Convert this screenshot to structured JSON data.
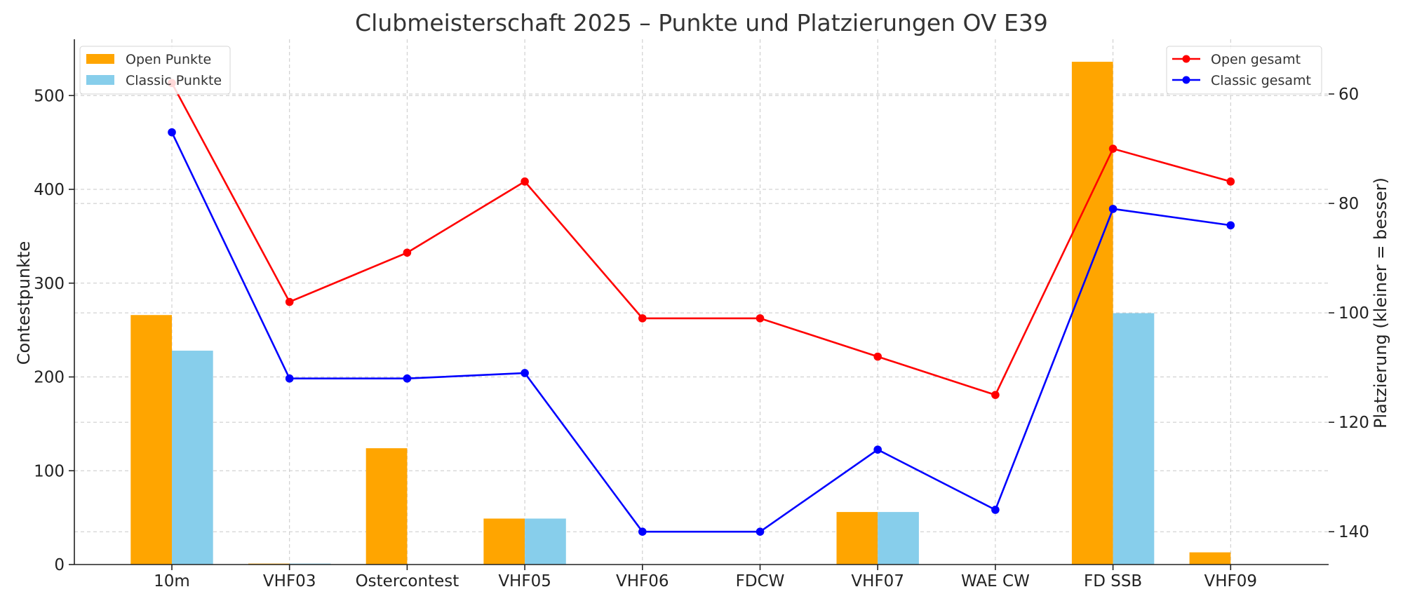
{
  "chart_data": {
    "type": "bar",
    "title": "Clubmeisterschaft 2025 – Punkte und Platzierungen OV E39",
    "categories": [
      "10m",
      "VHF03",
      "Ostercontest",
      "VHF05",
      "VHF06",
      "FDCW",
      "VHF07",
      "WAE CW",
      "FD SSB",
      "VHF09"
    ],
    "ylabel": "Contestpunkte",
    "y2label": "Platzierung (kleiner = besser)",
    "ylim": [
      0,
      560
    ],
    "yticks": [
      0,
      100,
      200,
      300,
      400,
      500
    ],
    "y2lim": [
      146,
      50
    ],
    "y2ticks": [
      60,
      80,
      100,
      120,
      140
    ],
    "y2_inverted": true,
    "grid": true,
    "bar_series": [
      {
        "name": "Open Punkte",
        "color": "#FFA500",
        "values": [
          266,
          1,
          124,
          49,
          0,
          0,
          56,
          0,
          536,
          13
        ]
      },
      {
        "name": "Classic Punkte",
        "color": "#87CEEB",
        "values": [
          228,
          1,
          0,
          49,
          0,
          0,
          56,
          0,
          268,
          0
        ]
      }
    ],
    "line_series": [
      {
        "name": "Open gesamt",
        "color": "#FF0000",
        "axis": "right",
        "values": [
          58,
          98,
          89,
          76,
          101,
          101,
          108,
          115,
          70,
          76
        ]
      },
      {
        "name": "Classic gesamt",
        "color": "#0000FF",
        "axis": "right",
        "values": [
          67,
          112,
          112,
          111,
          140,
          140,
          125,
          136,
          81,
          84
        ]
      }
    ],
    "legend_left": "top-left",
    "legend_right": "top-right"
  }
}
